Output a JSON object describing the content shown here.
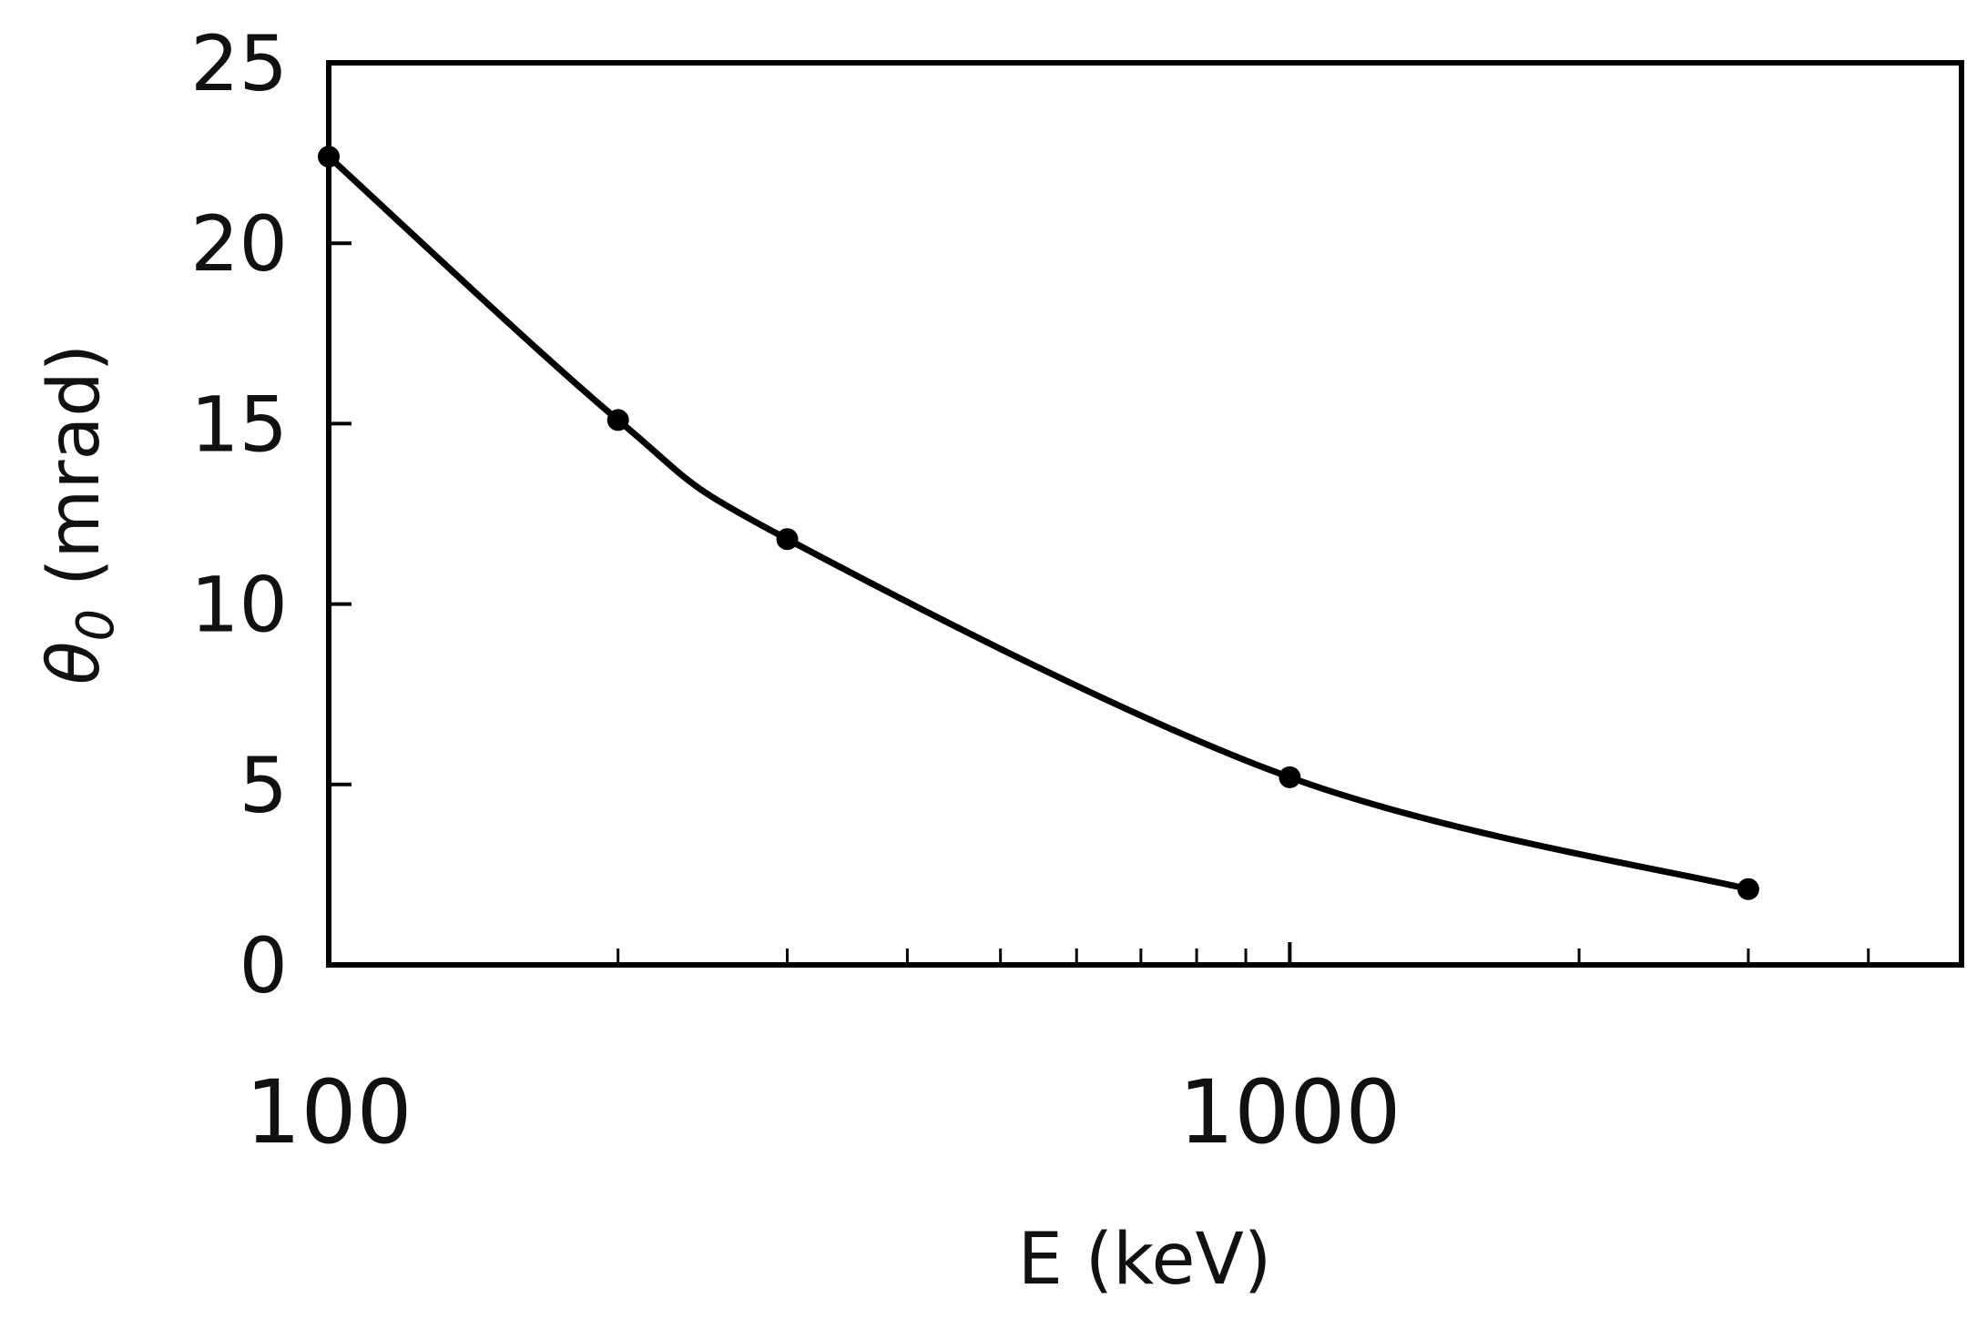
{
  "chart_data": {
    "type": "line",
    "title": "",
    "xlabel": "E (keV)",
    "ylabel": {
      "symbol": "θ",
      "subscript": "0",
      "unit": " (mrad)"
    },
    "x_scale": "log",
    "xlim": [
      100,
      5000
    ],
    "ylim": [
      0,
      25
    ],
    "x_ticks_labeled": [
      "100",
      "1000"
    ],
    "x_tick_values": [
      100,
      1000
    ],
    "x_minor_ticks": [
      200,
      300,
      400,
      500,
      600,
      700,
      800,
      900,
      2000,
      3000,
      4000
    ],
    "y_ticks": [
      "0",
      "5",
      "10",
      "15",
      "20",
      "25"
    ],
    "y_tick_values": [
      0,
      5,
      10,
      15,
      20,
      25
    ],
    "grid": false,
    "legend": "none",
    "series": [
      {
        "points": [
          {
            "x": 100,
            "y": 22.4
          },
          {
            "x": 200,
            "y": 15.1
          },
          {
            "x": 300,
            "y": 11.8
          },
          {
            "x": 1000,
            "y": 5.2
          },
          {
            "x": 3000,
            "y": 2.1
          }
        ],
        "color": "#000000",
        "marker": "circle",
        "smooth": true
      }
    ]
  }
}
